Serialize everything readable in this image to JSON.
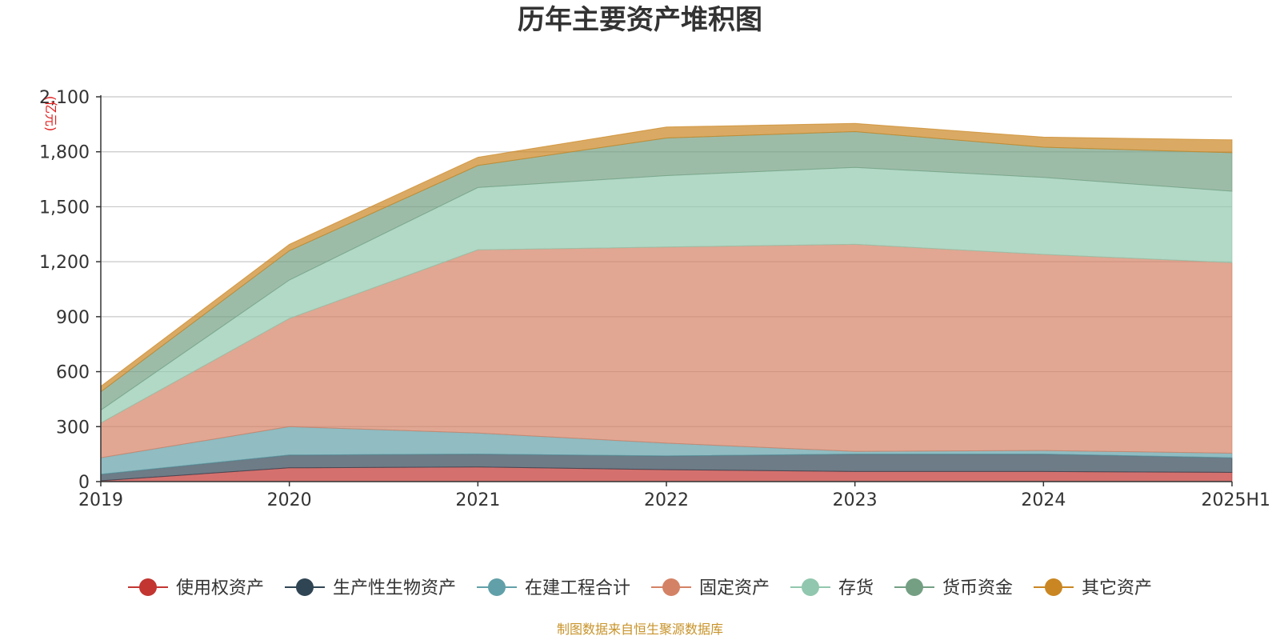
{
  "chart_data": {
    "type": "area",
    "stacked": true,
    "title": "历年主要资产堆积图",
    "unit_label": "(亿元)",
    "source_note": "制图数据来自恒生聚源数据库",
    "categories": [
      "2019",
      "2020",
      "2021",
      "2022",
      "2023",
      "2024",
      "2025H1"
    ],
    "y_ticks": [
      "0",
      "300",
      "600",
      "900",
      "1,200",
      "1,500",
      "1,800",
      "2,100"
    ],
    "ylim": [
      0,
      2100
    ],
    "grid": true,
    "legend_position": "bottom",
    "series": [
      {
        "name": "使用权资产",
        "color": "#c23531",
        "values": [
          5,
          75,
          80,
          65,
          55,
          55,
          50
        ]
      },
      {
        "name": "生产性生物资产",
        "color": "#2f4554",
        "values": [
          35,
          70,
          70,
          75,
          95,
          95,
          80
        ]
      },
      {
        "name": "在建工程合计",
        "color": "#61a0a8",
        "values": [
          90,
          155,
          115,
          70,
          15,
          20,
          25
        ]
      },
      {
        "name": "固定资产",
        "color": "#d48265",
        "values": [
          190,
          590,
          1000,
          1070,
          1130,
          1070,
          1040
        ]
      },
      {
        "name": "存货",
        "color": "#91c7ae",
        "values": [
          70,
          210,
          340,
          390,
          420,
          420,
          390
        ]
      },
      {
        "name": "货币资金",
        "color": "#749f83",
        "values": [
          100,
          160,
          120,
          205,
          195,
          165,
          210
        ]
      },
      {
        "name": "其它资产",
        "color": "#ca8622",
        "values": [
          30,
          35,
          45,
          60,
          45,
          55,
          70
        ]
      }
    ]
  }
}
